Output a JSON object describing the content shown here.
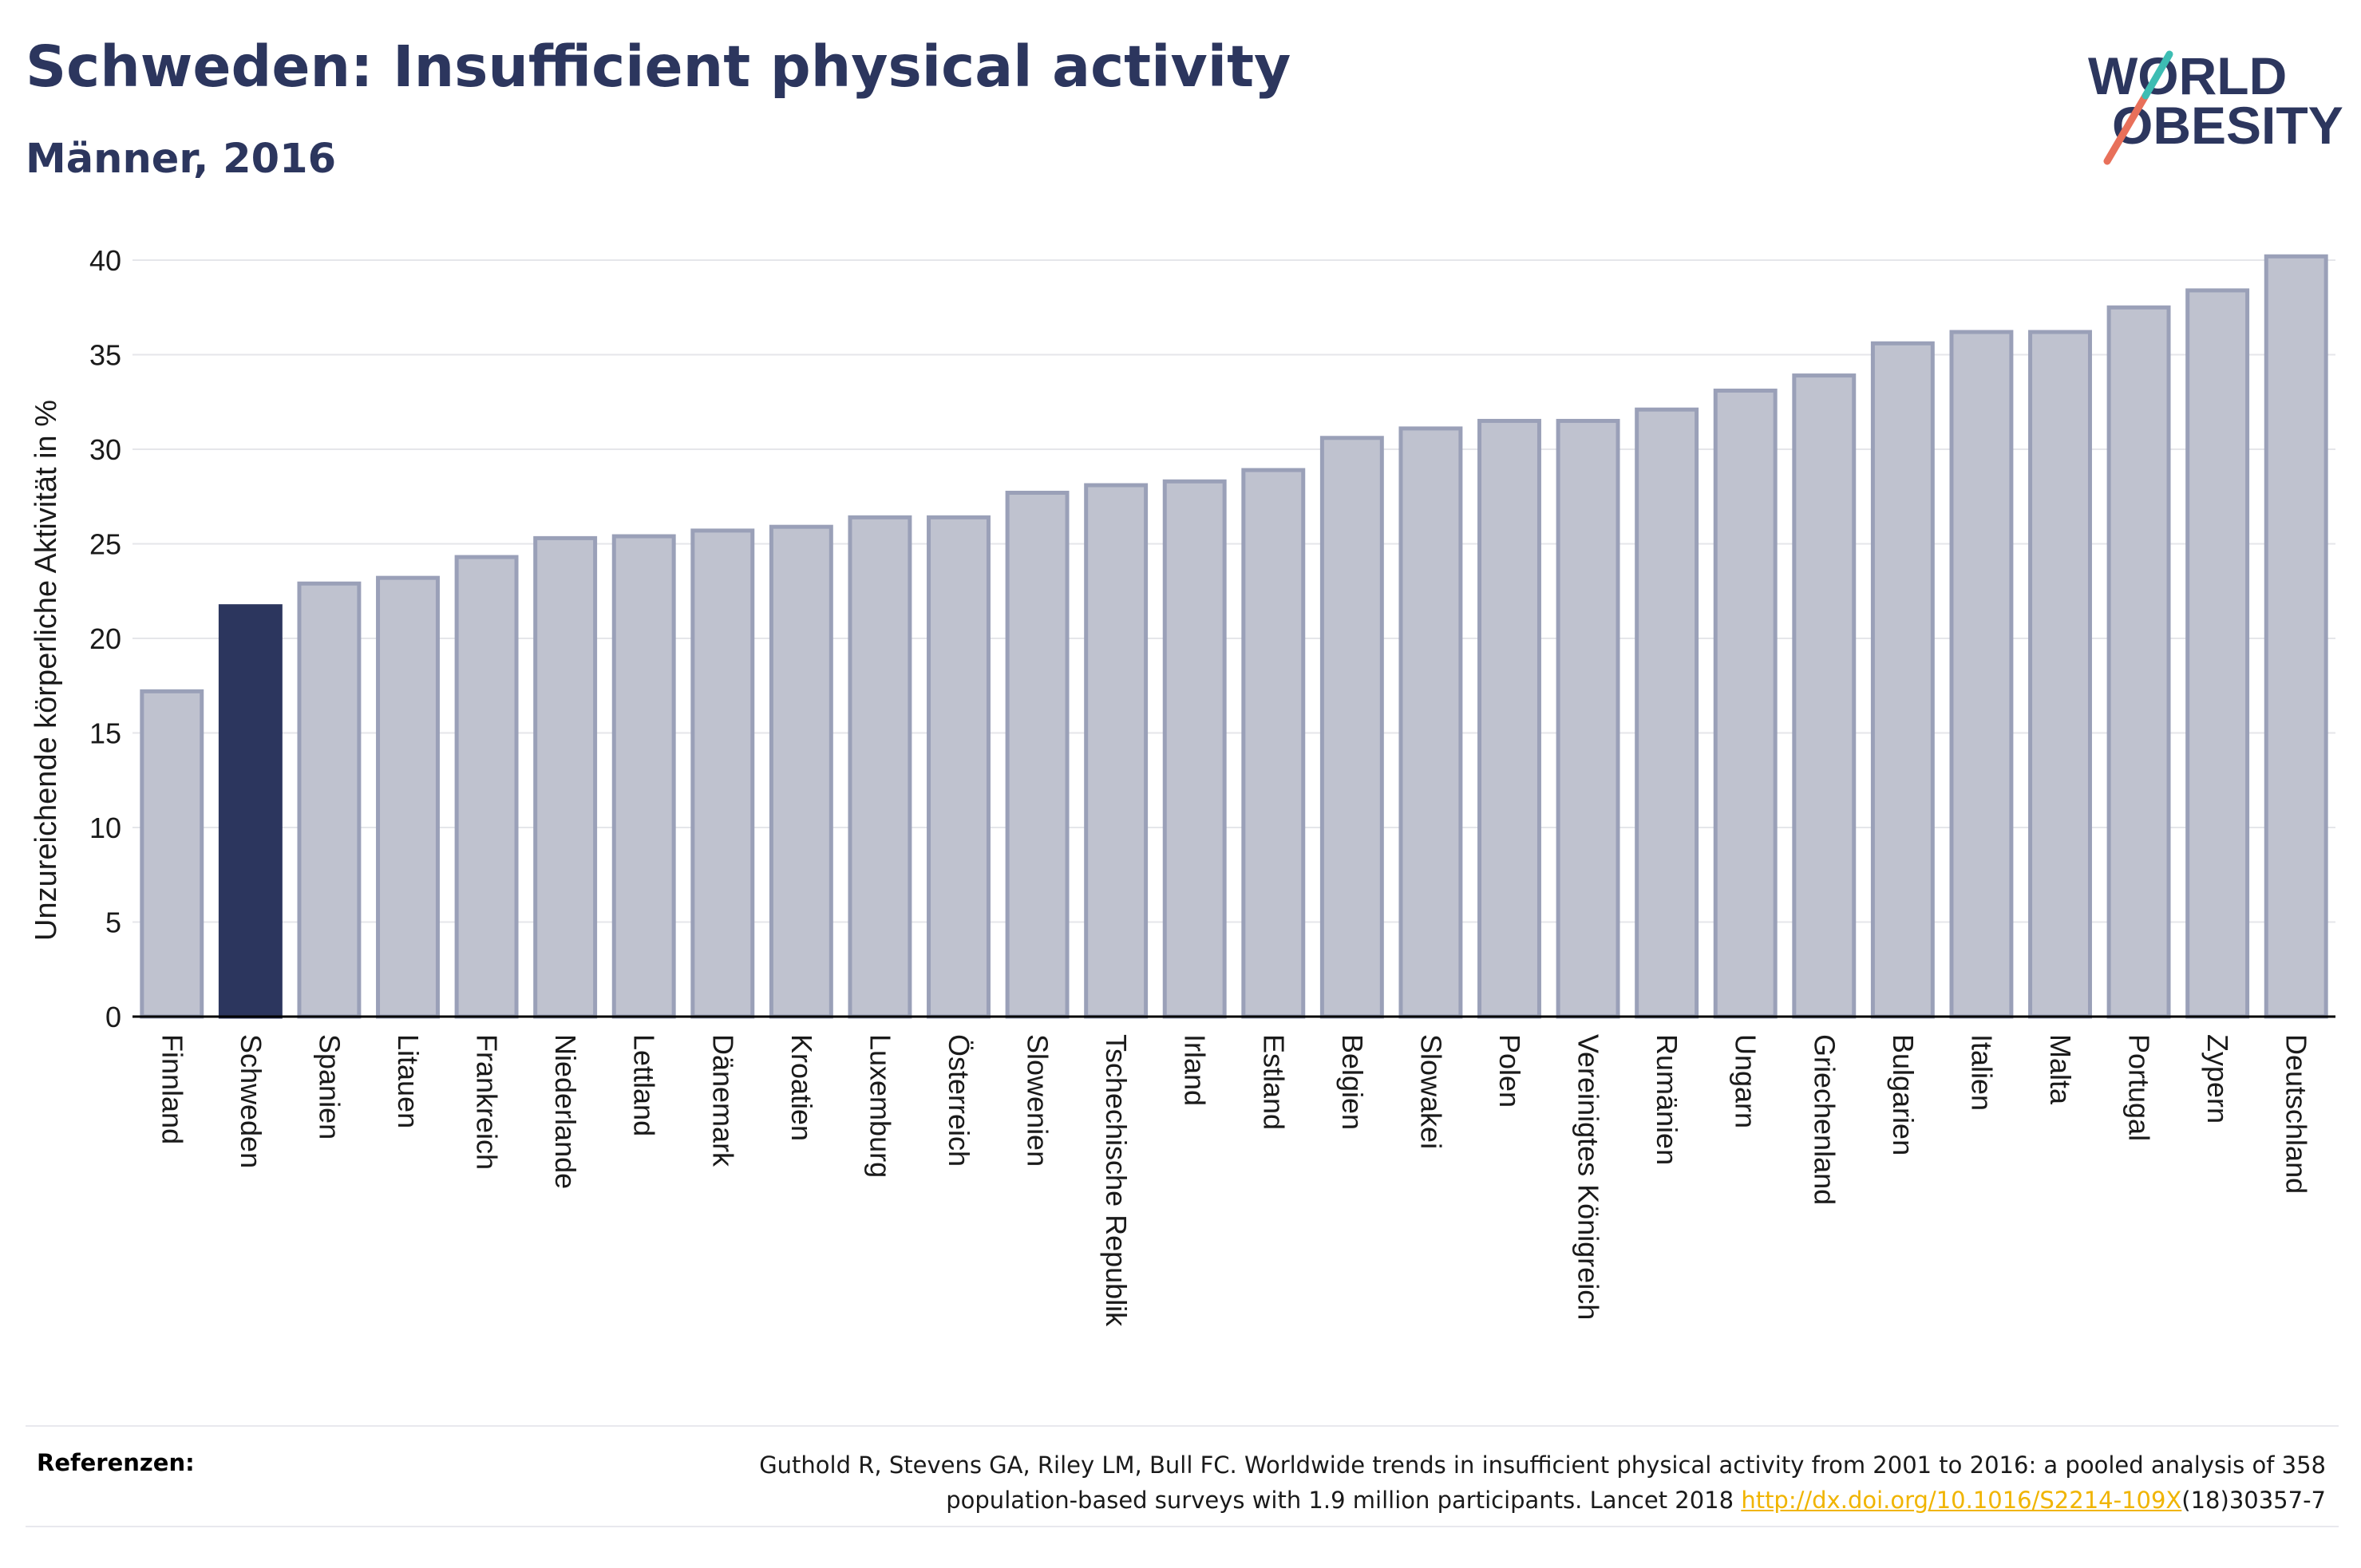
{
  "header": {
    "title": "Schweden: Insufficient physical activity",
    "subtitle": "Männer, 2016"
  },
  "logo": {
    "line1": "WORLD",
    "line2": "OBESITY",
    "accent_colors": [
      "#e8705a",
      "#3dbdb3"
    ]
  },
  "colors": {
    "bar_default": "#bfc2cf",
    "bar_border": "#9aa0b8",
    "bar_highlight": "#2c365e",
    "axis": "#000000",
    "grid": "#e5e6ea",
    "text": "#2c365e"
  },
  "chart_data": {
    "type": "bar",
    "title": "Schweden: Insufficient physical activity",
    "subtitle": "Männer, 2016",
    "xlabel": "",
    "ylabel": "Unzureichende körperliche Aktivität in %",
    "ylim": [
      0,
      40
    ],
    "yticks": [
      0,
      5,
      10,
      15,
      20,
      25,
      30,
      35,
      40
    ],
    "grid": true,
    "highlight": "Schweden",
    "categories": [
      "Finnland",
      "Schweden",
      "Spanien",
      "Litauen",
      "Frankreich",
      "Niederlande",
      "Lettland",
      "Dänemark",
      "Kroatien",
      "Luxemburg",
      "Österreich",
      "Slowenien",
      "Tschechische Republik",
      "Irland",
      "Estland",
      "Belgien",
      "Slowakei",
      "Polen",
      "Vereinigtes Königreich",
      "Rumänien",
      "Ungarn",
      "Griechenland",
      "Bulgarien",
      "Italien",
      "Malta",
      "Portugal",
      "Zypern",
      "Deutschland"
    ],
    "values": [
      17.2,
      21.7,
      22.9,
      23.2,
      24.3,
      25.3,
      25.4,
      25.7,
      25.9,
      26.4,
      26.4,
      27.7,
      28.1,
      28.3,
      28.9,
      30.6,
      31.1,
      31.5,
      31.5,
      32.1,
      33.1,
      33.9,
      35.6,
      36.2,
      36.2,
      37.5,
      38.4,
      40.2
    ]
  },
  "footer": {
    "label": "Referenzen:",
    "reference_line1": "Guthold R, Stevens GA, Riley LM, Bull FC. Worldwide trends in insufficient physical activity from 2001 to 2016: a pooled analysis of 358",
    "reference_line2_prefix": "population-based surveys with 1.9 million participants. Lancet 2018 ",
    "reference_link": "http://dx.doi.org/10.1016/S2214-109X",
    "reference_line2_suffix": "(18)30357-7"
  }
}
